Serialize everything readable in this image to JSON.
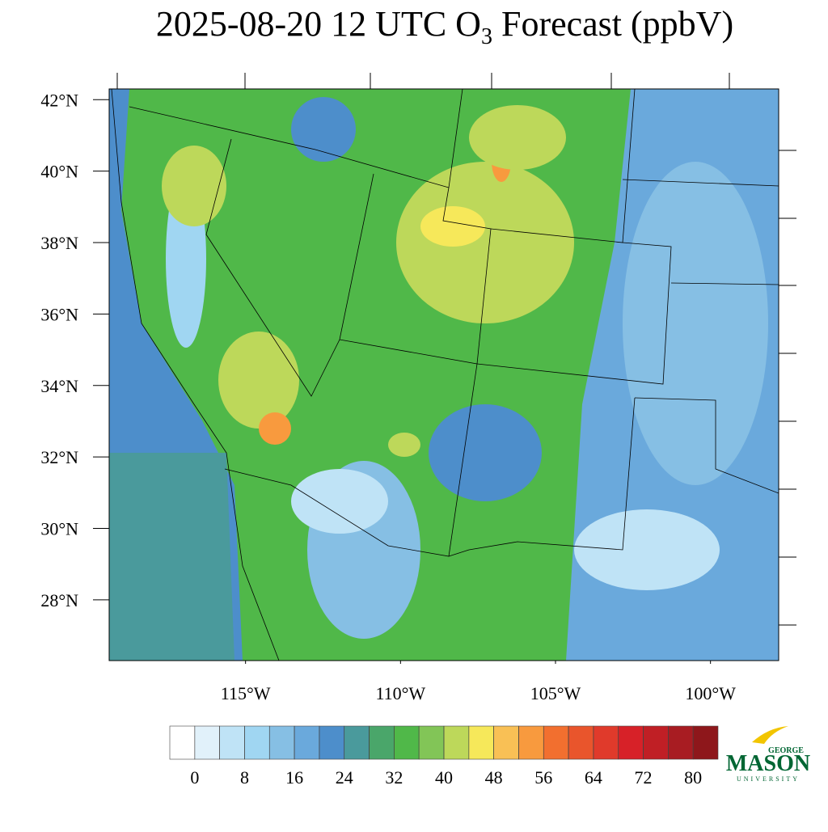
{
  "chart_data": {
    "type": "map",
    "title": {
      "prefix": "2025-08-20 12 UTC O",
      "subscript": "3",
      "suffix": " Forecast (ppbV)"
    },
    "xlim": [
      -119.4,
      -97.8
    ],
    "ylim": [
      26.3,
      42.3
    ],
    "xticks": [
      {
        "value": -115,
        "label": "115°W"
      },
      {
        "value": -110,
        "label": "110°W"
      },
      {
        "value": -105,
        "label": "105°W"
      },
      {
        "value": -100,
        "label": "100°W"
      }
    ],
    "yticks": [
      {
        "value": 28,
        "label": "28°N"
      },
      {
        "value": 30,
        "label": "30°N"
      },
      {
        "value": 32,
        "label": "32°N"
      },
      {
        "value": 34,
        "label": "34°N"
      },
      {
        "value": 36,
        "label": "36°N"
      },
      {
        "value": 38,
        "label": "38°N"
      },
      {
        "value": 40,
        "label": "40°N"
      },
      {
        "value": 42,
        "label": "42°N"
      }
    ],
    "colorbar": {
      "levels": [
        0,
        4,
        8,
        12,
        16,
        20,
        24,
        28,
        32,
        36,
        40,
        44,
        48,
        52,
        56,
        60,
        64,
        68,
        72,
        76,
        80
      ],
      "ticks": [
        0,
        8,
        16,
        24,
        32,
        40,
        48,
        56,
        64,
        72,
        80
      ],
      "colors": [
        "#ffffff",
        "#e1f1fa",
        "#bfe3f6",
        "#a0d6f2",
        "#86bfe4",
        "#6aa9dc",
        "#4d8ecb",
        "#4a9a9c",
        "#4aa66a",
        "#50b849",
        "#82c557",
        "#bdd85a",
        "#f6e85a",
        "#f9c055",
        "#f89a3e",
        "#f26f2f",
        "#e9552c",
        "#e03a2b",
        "#d72128",
        "#c01f25",
        "#a81c22",
        "#8e171b"
      ]
    },
    "logo": {
      "top": "GEORGE",
      "name": "MASON",
      "bottom": "UNIVERSITY"
    }
  }
}
